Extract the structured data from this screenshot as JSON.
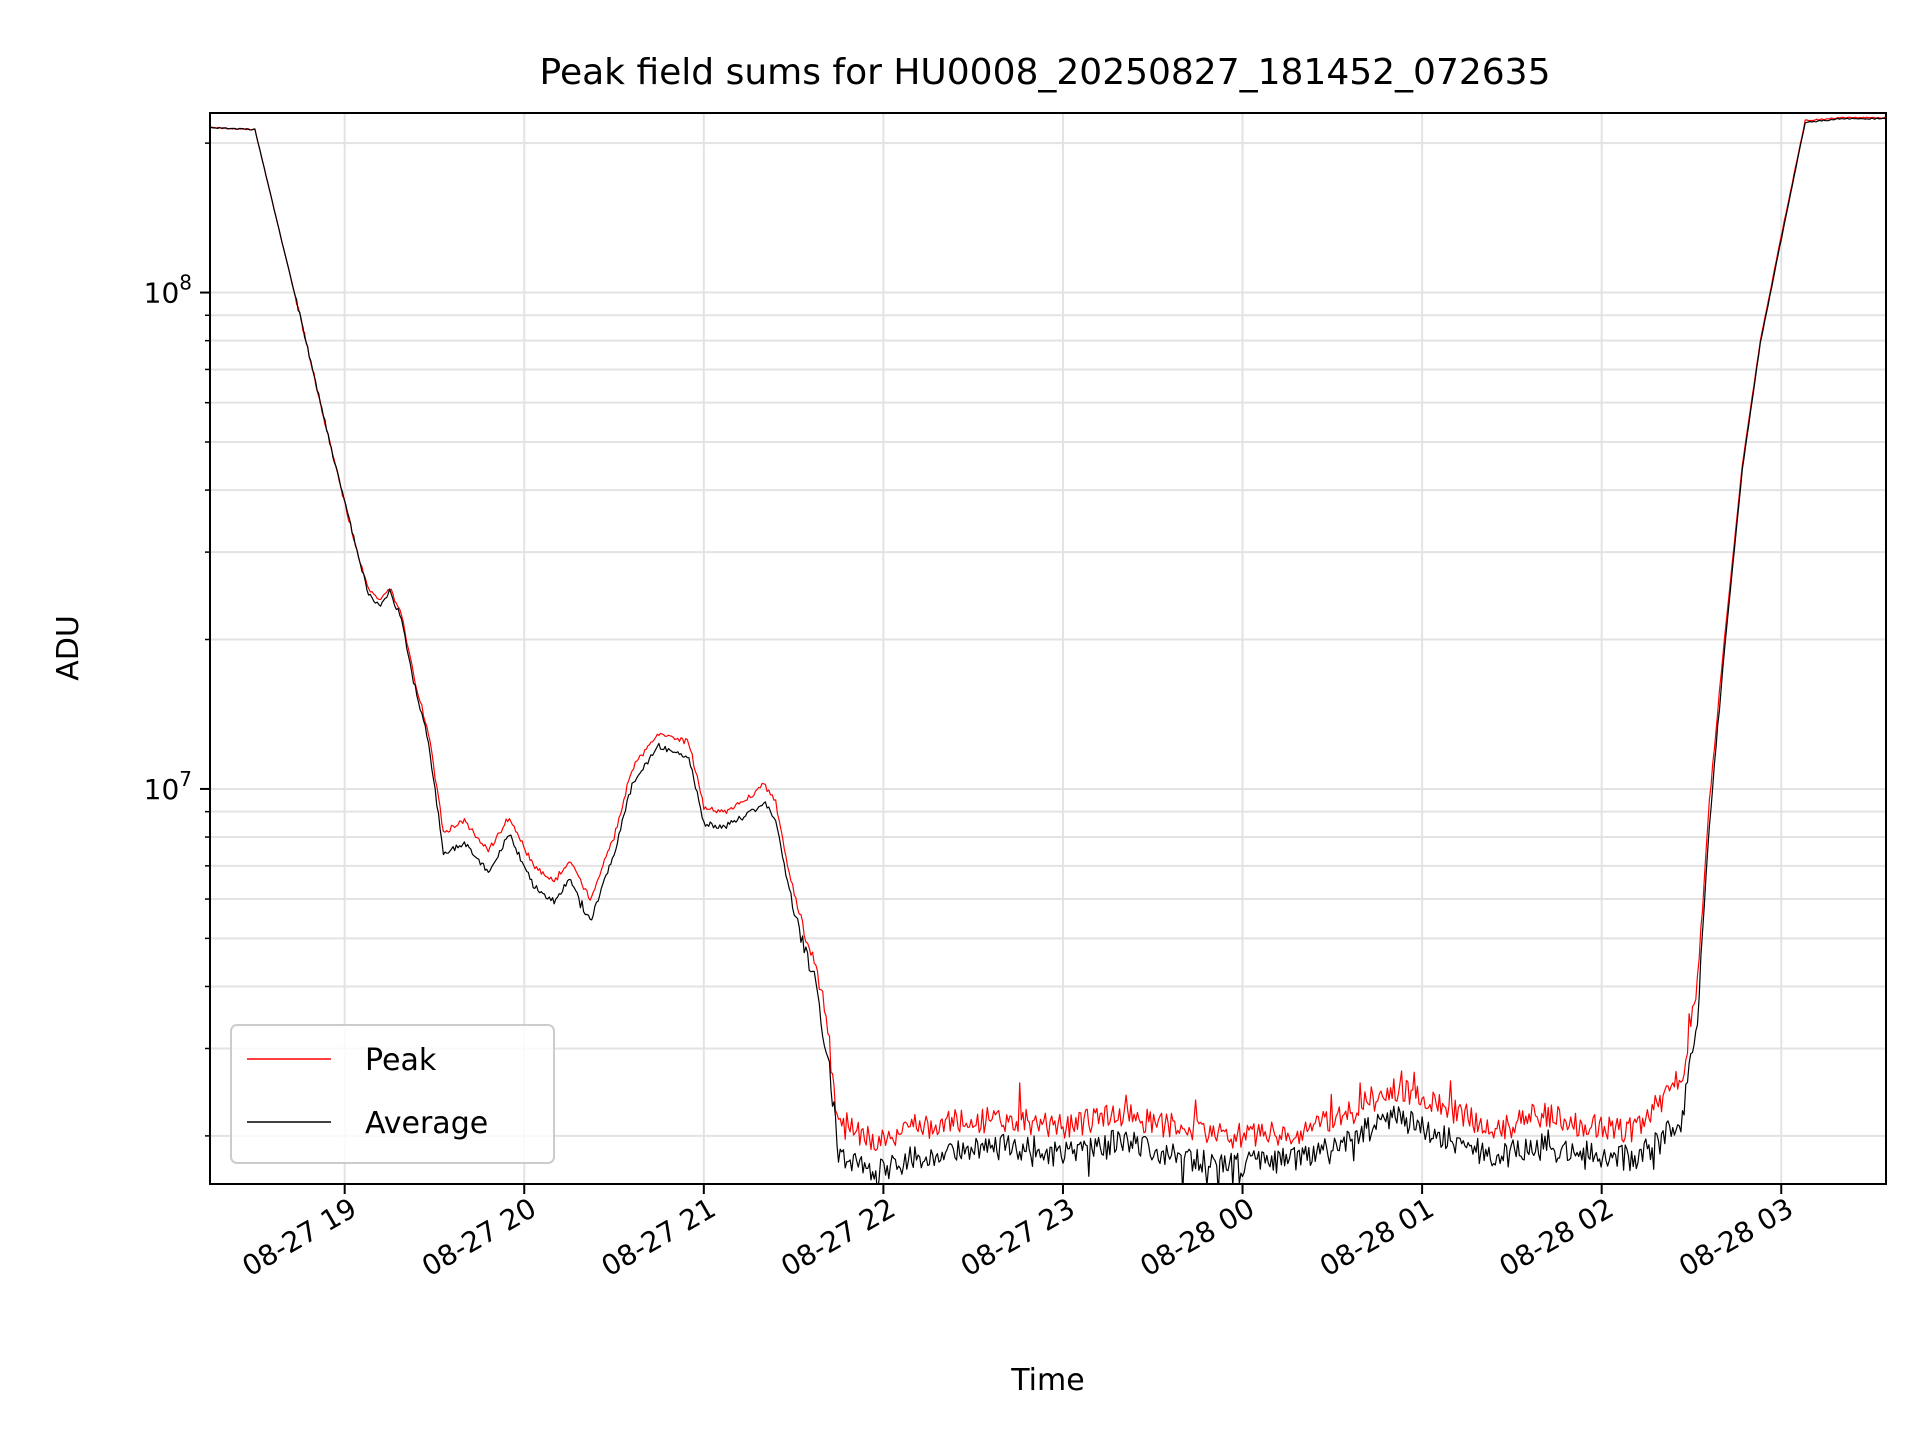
{
  "chart_data": {
    "type": "line",
    "title": "Peak field sums for HU0008_20250827_181452_072635",
    "xlabel": "Time",
    "ylabel": "ADU",
    "yscale": "log",
    "grid": true,
    "legend_position": "lower-left",
    "xlim": [
      "2025-08-27 18:15",
      "2025-08-28 03:35"
    ],
    "ylim": [
      1600000,
      230000000
    ],
    "x_ticks": [
      {
        "t": "2025-08-27 19:00",
        "label": "08-27 19"
      },
      {
        "t": "2025-08-27 20:00",
        "label": "08-27 20"
      },
      {
        "t": "2025-08-27 21:00",
        "label": "08-27 21"
      },
      {
        "t": "2025-08-27 22:00",
        "label": "08-27 22"
      },
      {
        "t": "2025-08-27 23:00",
        "label": "08-27 23"
      },
      {
        "t": "2025-08-28 00:00",
        "label": "08-28 00"
      },
      {
        "t": "2025-08-28 01:00",
        "label": "08-28 01"
      },
      {
        "t": "2025-08-28 02:00",
        "label": "08-28 02"
      },
      {
        "t": "2025-08-28 03:00",
        "label": "08-28 03"
      }
    ],
    "y_ticks": [
      {
        "v": 10000000,
        "base": "10",
        "exp": "7"
      },
      {
        "v": 100000000,
        "base": "10",
        "exp": "8"
      }
    ],
    "series": [
      {
        "name": "Peak",
        "color": "#ff0000",
        "points": [
          [
            "2025-08-27 18:15",
            215000000
          ],
          [
            "2025-08-27 18:30",
            213000000
          ],
          [
            "2025-08-27 18:45",
            90000000
          ],
          [
            "2025-08-27 18:55",
            50000000
          ],
          [
            "2025-08-27 19:03",
            32000000
          ],
          [
            "2025-08-27 19:08",
            25000000
          ],
          [
            "2025-08-27 19:12",
            24000000
          ],
          [
            "2025-08-27 19:15",
            25500000
          ],
          [
            "2025-08-27 19:19",
            22500000
          ],
          [
            "2025-08-27 19:23",
            17000000
          ],
          [
            "2025-08-27 19:28",
            13000000
          ],
          [
            "2025-08-27 19:33",
            8200000
          ],
          [
            "2025-08-27 19:40",
            8600000
          ],
          [
            "2025-08-27 19:48",
            7500000
          ],
          [
            "2025-08-27 19:55",
            8800000
          ],
          [
            "2025-08-27 20:03",
            7000000
          ],
          [
            "2025-08-27 20:10",
            6500000
          ],
          [
            "2025-08-27 20:15",
            7200000
          ],
          [
            "2025-08-27 20:22",
            6000000
          ],
          [
            "2025-08-27 20:30",
            8000000
          ],
          [
            "2025-08-27 20:36",
            11000000
          ],
          [
            "2025-08-27 20:45",
            13000000
          ],
          [
            "2025-08-27 20:55",
            12400000
          ],
          [
            "2025-08-27 21:00",
            9200000
          ],
          [
            "2025-08-27 21:07",
            9000000
          ],
          [
            "2025-08-27 21:15",
            9600000
          ],
          [
            "2025-08-27 21:20",
            10200000
          ],
          [
            "2025-08-27 21:24",
            9400000
          ],
          [
            "2025-08-27 21:28",
            7000000
          ],
          [
            "2025-08-27 21:33",
            5300000
          ],
          [
            "2025-08-27 21:38",
            4300000
          ],
          [
            "2025-08-27 21:42",
            3000000
          ],
          [
            "2025-08-27 21:45",
            2100000
          ],
          [
            "2025-08-27 21:50",
            2050000
          ],
          [
            "2025-08-27 21:58",
            1950000
          ],
          [
            "2025-08-27 22:10",
            2050000
          ],
          [
            "2025-08-27 22:25",
            2150000
          ],
          [
            "2025-08-27 22:45",
            2150000
          ],
          [
            "2025-08-27 23:00",
            2100000
          ],
          [
            "2025-08-27 23:20",
            2200000
          ],
          [
            "2025-08-27 23:40",
            2050000
          ],
          [
            "2025-08-28 00:00",
            2000000
          ],
          [
            "2025-08-28 00:20",
            2050000
          ],
          [
            "2025-08-28 00:35",
            2200000
          ],
          [
            "2025-08-28 00:50",
            2500000
          ],
          [
            "2025-08-28 01:00",
            2400000
          ],
          [
            "2025-08-28 01:10",
            2250000
          ],
          [
            "2025-08-28 01:25",
            2050000
          ],
          [
            "2025-08-28 01:40",
            2200000
          ],
          [
            "2025-08-28 01:55",
            2100000
          ],
          [
            "2025-08-28 02:10",
            2050000
          ],
          [
            "2025-08-28 02:20",
            2300000
          ],
          [
            "2025-08-28 02:27",
            2700000
          ],
          [
            "2025-08-28 02:32",
            4000000
          ],
          [
            "2025-08-28 02:36",
            9500000
          ],
          [
            "2025-08-28 02:41",
            20000000
          ],
          [
            "2025-08-28 02:47",
            45000000
          ],
          [
            "2025-08-28 02:53",
            80000000
          ],
          [
            "2025-08-28 03:00",
            130000000
          ],
          [
            "2025-08-28 03:08",
            222000000
          ],
          [
            "2025-08-28 03:20",
            225000000
          ],
          [
            "2025-08-28 03:35",
            225000000
          ]
        ]
      },
      {
        "name": "Average",
        "color": "#000000",
        "points": [
          [
            "2025-08-27 18:15",
            215000000
          ],
          [
            "2025-08-27 18:30",
            213000000
          ],
          [
            "2025-08-27 18:45",
            90000000
          ],
          [
            "2025-08-27 18:55",
            50000000
          ],
          [
            "2025-08-27 19:03",
            32000000
          ],
          [
            "2025-08-27 19:08",
            24500000
          ],
          [
            "2025-08-27 19:12",
            23500000
          ],
          [
            "2025-08-27 19:15",
            25000000
          ],
          [
            "2025-08-27 19:19",
            22000000
          ],
          [
            "2025-08-27 19:23",
            16500000
          ],
          [
            "2025-08-27 19:28",
            12500000
          ],
          [
            "2025-08-27 19:33",
            7400000
          ],
          [
            "2025-08-27 19:40",
            7800000
          ],
          [
            "2025-08-27 19:48",
            6800000
          ],
          [
            "2025-08-27 19:55",
            8100000
          ],
          [
            "2025-08-27 20:03",
            6400000
          ],
          [
            "2025-08-27 20:10",
            5900000
          ],
          [
            "2025-08-27 20:15",
            6600000
          ],
          [
            "2025-08-27 20:22",
            5400000
          ],
          [
            "2025-08-27 20:30",
            7400000
          ],
          [
            "2025-08-27 20:36",
            10200000
          ],
          [
            "2025-08-27 20:45",
            12200000
          ],
          [
            "2025-08-27 20:55",
            11600000
          ],
          [
            "2025-08-27 21:00",
            8500000
          ],
          [
            "2025-08-27 21:07",
            8400000
          ],
          [
            "2025-08-27 21:15",
            8900000
          ],
          [
            "2025-08-27 21:20",
            9400000
          ],
          [
            "2025-08-27 21:24",
            8700000
          ],
          [
            "2025-08-27 21:28",
            6500000
          ],
          [
            "2025-08-27 21:33",
            4900000
          ],
          [
            "2025-08-27 21:38",
            3900000
          ],
          [
            "2025-08-27 21:42",
            2700000
          ],
          [
            "2025-08-27 21:45",
            1850000
          ],
          [
            "2025-08-27 21:50",
            1750000
          ],
          [
            "2025-08-27 21:58",
            1700000
          ],
          [
            "2025-08-27 22:10",
            1800000
          ],
          [
            "2025-08-27 22:25",
            1900000
          ],
          [
            "2025-08-27 22:45",
            1900000
          ],
          [
            "2025-08-27 23:00",
            1850000
          ],
          [
            "2025-08-27 23:20",
            1950000
          ],
          [
            "2025-08-27 23:40",
            1800000
          ],
          [
            "2025-08-28 00:00",
            1750000
          ],
          [
            "2025-08-28 00:20",
            1800000
          ],
          [
            "2025-08-28 00:35",
            1950000
          ],
          [
            "2025-08-28 00:50",
            2200000
          ],
          [
            "2025-08-28 01:00",
            2100000
          ],
          [
            "2025-08-28 01:10",
            1950000
          ],
          [
            "2025-08-28 01:25",
            1800000
          ],
          [
            "2025-08-28 01:40",
            1950000
          ],
          [
            "2025-08-28 01:55",
            1850000
          ],
          [
            "2025-08-28 02:10",
            1800000
          ],
          [
            "2025-08-28 02:20",
            1950000
          ],
          [
            "2025-08-28 02:27",
            2200000
          ],
          [
            "2025-08-28 02:32",
            3500000
          ],
          [
            "2025-08-28 02:36",
            8500000
          ],
          [
            "2025-08-28 02:41",
            19000000
          ],
          [
            "2025-08-28 02:47",
            44000000
          ],
          [
            "2025-08-28 02:53",
            79000000
          ],
          [
            "2025-08-28 03:00",
            128000000
          ],
          [
            "2025-08-28 03:08",
            220000000
          ],
          [
            "2025-08-28 03:20",
            224000000
          ],
          [
            "2025-08-28 03:35",
            224000000
          ]
        ]
      }
    ]
  }
}
